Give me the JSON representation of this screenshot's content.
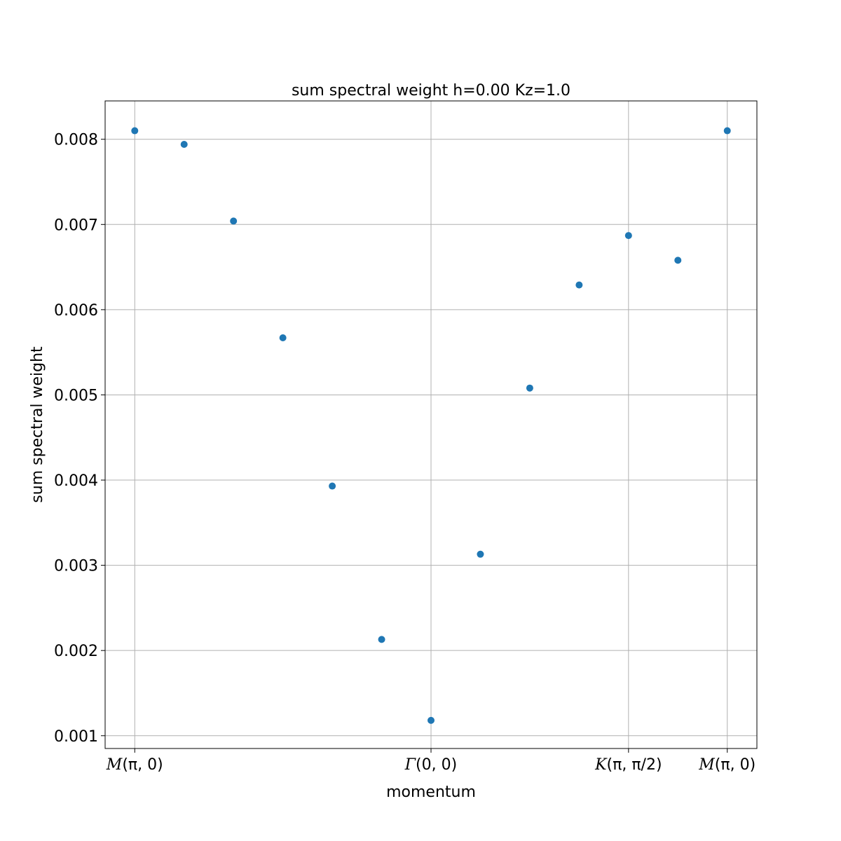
{
  "chart_data": {
    "type": "scatter",
    "title": "sum spectral weight h=0.00 Kz=1.0",
    "xlabel": "momentum",
    "ylabel": "sum spectral weight",
    "x": [
      0,
      1,
      2,
      3,
      4,
      5,
      6,
      7,
      8,
      9,
      10,
      11,
      12
    ],
    "y": [
      0.0081,
      0.00794,
      0.00704,
      0.00567,
      0.00393,
      0.00213,
      0.00118,
      0.00313,
      0.00508,
      0.00629,
      0.00687,
      0.00658,
      0.0081
    ],
    "xlim": [
      -0.6,
      12.6
    ],
    "ylim": [
      0.00085,
      0.00845
    ],
    "xticks": [
      {
        "value": 0,
        "label": "M",
        "arg": "(π, 0)"
      },
      {
        "value": 6,
        "label": "Γ",
        "arg": "(0, 0)"
      },
      {
        "value": 10,
        "label": "K",
        "arg": "(π, π/2)"
      },
      {
        "value": 12,
        "label": "M",
        "arg": "(π, 0)"
      }
    ],
    "yticks": [
      {
        "value": 0.001,
        "label": "0.001"
      },
      {
        "value": 0.002,
        "label": "0.002"
      },
      {
        "value": 0.003,
        "label": "0.003"
      },
      {
        "value": 0.004,
        "label": "0.004"
      },
      {
        "value": 0.005,
        "label": "0.005"
      },
      {
        "value": 0.006,
        "label": "0.006"
      },
      {
        "value": 0.007,
        "label": "0.007"
      },
      {
        "value": 0.008,
        "label": "0.008"
      }
    ],
    "grid": true,
    "marker_color": "#1f77b4"
  }
}
